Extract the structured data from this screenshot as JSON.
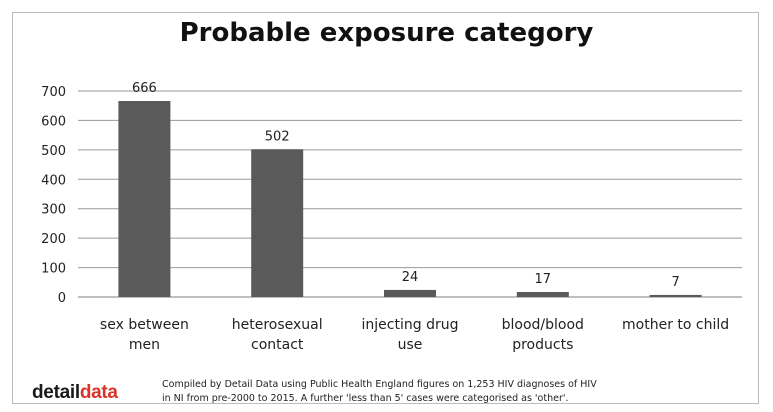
{
  "chart_data": {
    "type": "bar",
    "title": "Probable exposure category",
    "categories": [
      [
        "sex between",
        "men"
      ],
      [
        "heterosexual",
        "contact"
      ],
      [
        "injecting drug",
        "use"
      ],
      [
        "blood/blood",
        "products"
      ],
      [
        "mother to child"
      ]
    ],
    "values": [
      666,
      502,
      24,
      17,
      7
    ],
    "data_labels": [
      "666",
      "502",
      "24",
      "17",
      "7"
    ],
    "yticks": [
      "0",
      "100",
      "200",
      "300",
      "400",
      "500",
      "600",
      "700"
    ],
    "ylim": [
      0,
      700
    ],
    "grid": true,
    "bar_color": "#5a5a5a"
  },
  "footer": {
    "logo_part1": "detail",
    "logo_part2": "data",
    "note_line1": "Compiled by Detail Data using Public Health England figures on 1,253 HIV diagnoses of HIV",
    "note_line2": "in NI from pre-2000 to 2015. A further 'less than 5' cases were categorised as 'other'."
  }
}
